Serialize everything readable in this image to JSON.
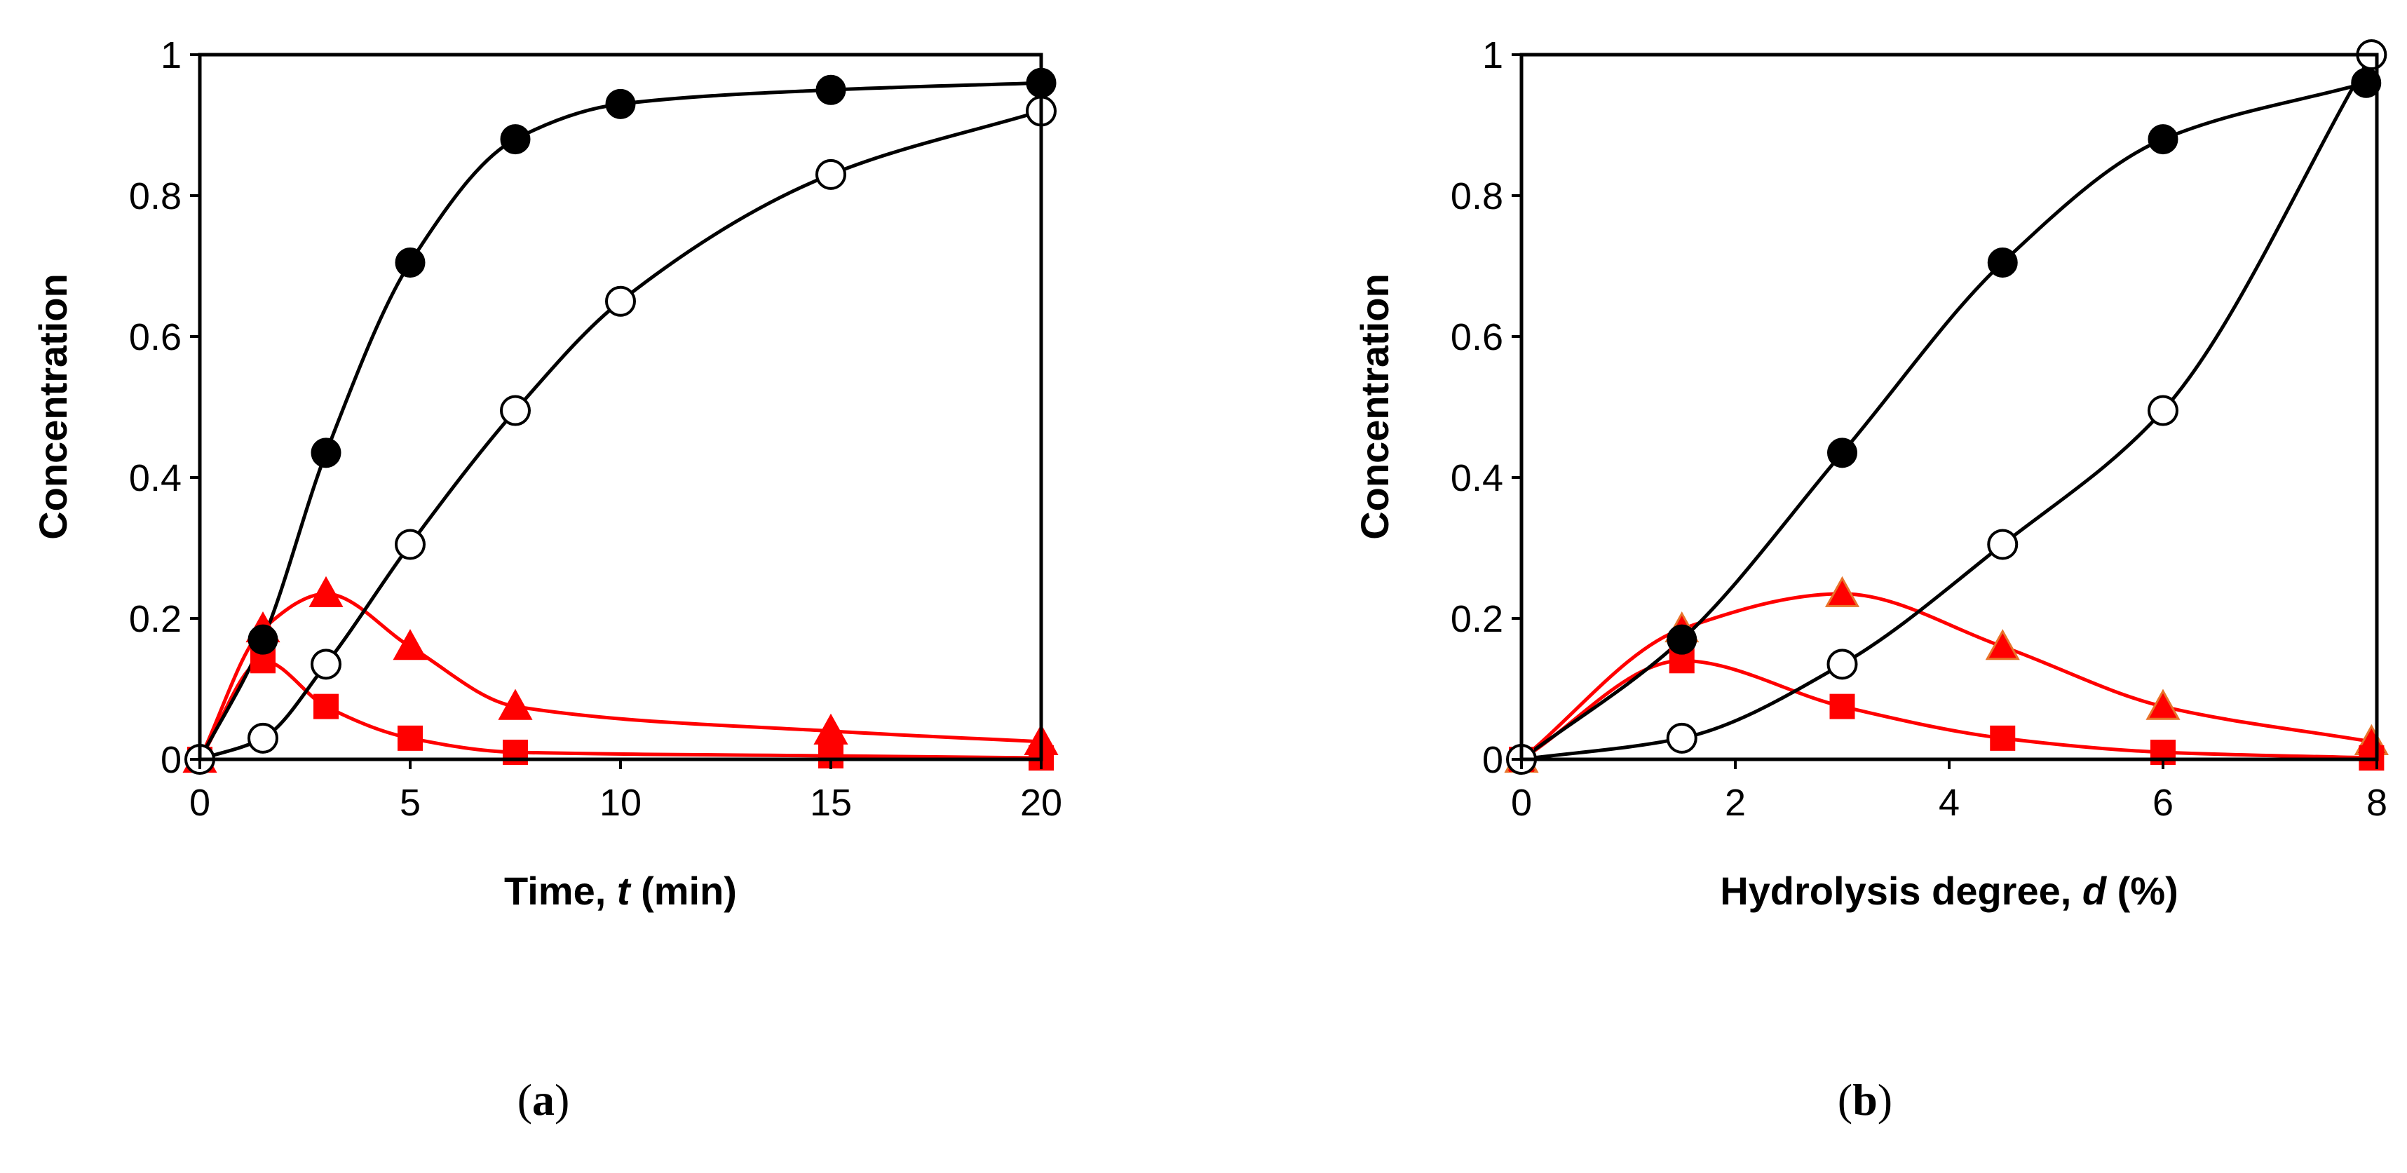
{
  "figure": {
    "panel_labels": [
      {
        "open": "(",
        "letter": "a",
        "close": ")"
      },
      {
        "open": "(",
        "letter": "b",
        "close": ")"
      }
    ]
  },
  "colors": {
    "black": "#000000",
    "red": "#ff0000",
    "orange_edge": "#e8742b",
    "white": "#ffffff"
  },
  "chart_data": [
    {
      "type": "line",
      "panel": "a",
      "xlabel_prefix": "Time, ",
      "xlabel_var": "t",
      "xlabel_suffix": " (min)",
      "ylabel": "Concentration",
      "xlim": [
        0,
        20
      ],
      "ylim": [
        0,
        1
      ],
      "xticks": [
        "0",
        "5",
        "10",
        "15",
        "20"
      ],
      "yticks": [
        "0",
        "0.2",
        "0.4",
        "0.6",
        "0.8",
        "1"
      ],
      "series": [
        {
          "name": "filled circles",
          "marker": "circle-filled",
          "line": "black",
          "x": [
            0,
            1.5,
            3,
            5,
            7.5,
            10,
            15,
            20
          ],
          "y": [
            0,
            0.17,
            0.435,
            0.705,
            0.88,
            0.93,
            0.95,
            0.96
          ]
        },
        {
          "name": "open circles",
          "marker": "circle-open",
          "line": "black",
          "x": [
            0,
            1.5,
            3,
            5,
            7.5,
            10,
            15,
            20
          ],
          "y": [
            0,
            0.03,
            0.135,
            0.305,
            0.495,
            0.65,
            0.83,
            0.92
          ]
        },
        {
          "name": "triangles",
          "marker": "triangle",
          "line": "red",
          "x": [
            0,
            1.5,
            3,
            5,
            7.5,
            15,
            20
          ],
          "y": [
            0,
            0.185,
            0.235,
            0.16,
            0.075,
            0.04,
            0.025
          ]
        },
        {
          "name": "squares",
          "marker": "square",
          "line": "red",
          "x": [
            0,
            1.5,
            3,
            5,
            7.5,
            15,
            20
          ],
          "y": [
            0,
            0.14,
            0.075,
            0.03,
            0.01,
            0.005,
            0.002
          ]
        }
      ]
    },
    {
      "type": "line",
      "panel": "b",
      "xlabel_prefix": "Hydrolysis degree, ",
      "xlabel_var": "d",
      "xlabel_suffix": " (%)",
      "ylabel": "Concentration",
      "xlim": [
        0,
        8
      ],
      "ylim": [
        0,
        1
      ],
      "xticks": [
        "0",
        "2",
        "4",
        "6",
        "8"
      ],
      "yticks": [
        "0",
        "0.2",
        "0.4",
        "0.6",
        "0.8",
        "1"
      ],
      "series": [
        {
          "name": "filled circles",
          "marker": "circle-filled",
          "line": "black",
          "x": [
            0,
            1.5,
            3,
            4.5,
            6,
            7.9
          ],
          "y": [
            0,
            0.17,
            0.435,
            0.705,
            0.88,
            0.96
          ]
        },
        {
          "name": "open circles",
          "marker": "circle-open",
          "line": "black",
          "x": [
            0,
            1.5,
            3,
            4.5,
            6,
            7.95
          ],
          "y": [
            0,
            0.03,
            0.135,
            0.305,
            0.495,
            1.0
          ]
        },
        {
          "name": "triangles",
          "marker": "triangle-orange-edge",
          "line": "red",
          "x": [
            0,
            1.5,
            3,
            4.5,
            6,
            7.95
          ],
          "y": [
            0,
            0.185,
            0.235,
            0.16,
            0.075,
            0.025
          ]
        },
        {
          "name": "squares",
          "marker": "square",
          "line": "red",
          "x": [
            0,
            1.5,
            3,
            4.5,
            6,
            7.95
          ],
          "y": [
            0,
            0.14,
            0.075,
            0.03,
            0.01,
            0.002
          ]
        }
      ]
    }
  ]
}
